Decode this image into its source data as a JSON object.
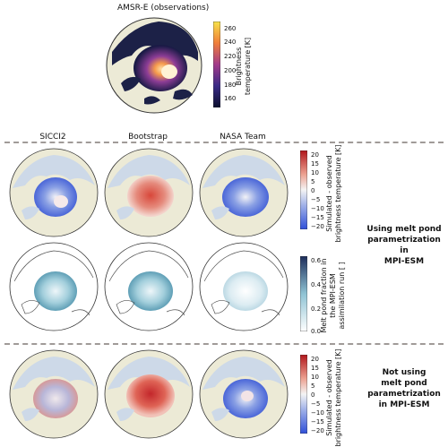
{
  "top": {
    "title": "AMSR-E (observations)",
    "colorbar_label": "Brightness\ntemperature [K]",
    "colorbar_ticks": [
      "260",
      "240",
      "220",
      "200",
      "180",
      "160"
    ]
  },
  "columns": [
    "SICCI2",
    "Bootstrap",
    "NASA Team"
  ],
  "diff_colorbar": {
    "label": "Simulated - observed\nbrightness temperature [K]",
    "ticks": [
      "20",
      "15",
      "10",
      "5",
      "0",
      "−5",
      "−10",
      "−15",
      "−20"
    ]
  },
  "pond_colorbar": {
    "label": "Melt pond fraction in\nthe MPI-ESM\nassimilation run [ ]",
    "ticks": [
      "0.6",
      "0.4",
      "0.2",
      "0.0"
    ]
  },
  "side_labels": {
    "with_ponds": [
      "Using melt pond",
      "parametrization in",
      "MPI-ESM"
    ],
    "without_ponds": [
      "Not using",
      "melt pond",
      "parametrization",
      "in MPI-ESM"
    ]
  },
  "colors": {
    "land": "#ecead6",
    "ocean_blue": "#cdd9e8",
    "warm": "#d6443a",
    "cold": "#3d5fd6",
    "pond": "#9cc9d6"
  }
}
